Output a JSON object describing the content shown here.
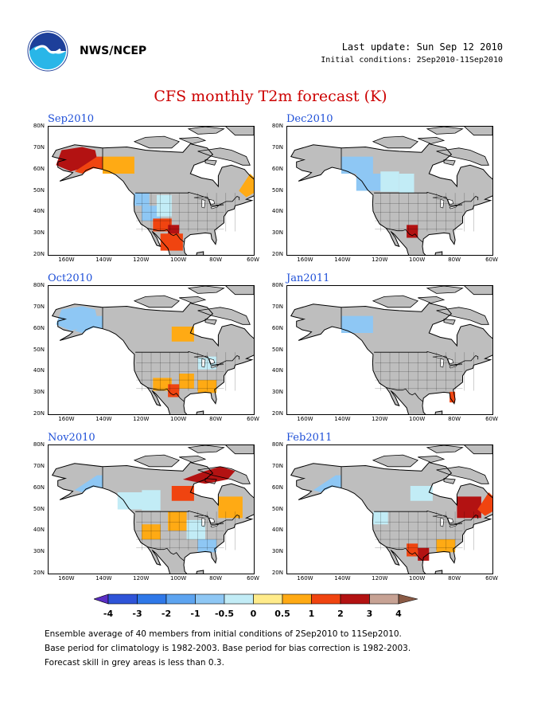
{
  "header": {
    "agency": "NWS/NCEP",
    "last_update": "Last update: Sun Sep 12 2010",
    "initial_conditions": "Initial conditions: 2Sep2010-11Sep2010"
  },
  "title": "CFS monthly T2m forecast (K)",
  "panels": [
    {
      "title": "Sep2010",
      "anomalies": [
        {
          "region": "alaska-west",
          "value": 2
        },
        {
          "region": "alaska-central",
          "value": 1
        },
        {
          "region": "yukon",
          "value": 0.5
        },
        {
          "region": "labrador",
          "value": 0.5
        },
        {
          "region": "pacific-northwest",
          "value": -1
        },
        {
          "region": "great-basin",
          "value": -1
        },
        {
          "region": "rockies",
          "value": -0.5
        },
        {
          "region": "southwest",
          "value": 1
        },
        {
          "region": "texas-west",
          "value": 2
        },
        {
          "region": "mexico-north",
          "value": 1
        }
      ]
    },
    {
      "title": "Dec2010",
      "anomalies": [
        {
          "region": "yukon",
          "value": -1
        },
        {
          "region": "british-columbia",
          "value": -1
        },
        {
          "region": "alberta",
          "value": -0.5
        },
        {
          "region": "saskatchewan",
          "value": -0.5
        },
        {
          "region": "texas-west",
          "value": 2
        }
      ]
    },
    {
      "title": "Oct2010",
      "anomalies": [
        {
          "region": "alaska-west",
          "value": -1
        },
        {
          "region": "alaska-central",
          "value": -1
        },
        {
          "region": "hudson-bay-west",
          "value": 0.5
        },
        {
          "region": "great-lakes",
          "value": -0.5
        },
        {
          "region": "southwest",
          "value": 0.5
        },
        {
          "region": "texas-west",
          "value": 1
        },
        {
          "region": "plains-south",
          "value": 0.5
        },
        {
          "region": "southeast",
          "value": 0.5
        }
      ]
    },
    {
      "title": "Jan2011",
      "anomalies": [
        {
          "region": "yukon",
          "value": -1
        },
        {
          "region": "florida",
          "value": 1
        }
      ]
    },
    {
      "title": "Nov2010",
      "anomalies": [
        {
          "region": "alaska-central",
          "value": -1
        },
        {
          "region": "nunavut",
          "value": 2
        },
        {
          "region": "hudson-bay-west",
          "value": 1
        },
        {
          "region": "quebec",
          "value": 0.5
        },
        {
          "region": "british-columbia",
          "value": -0.5
        },
        {
          "region": "alberta",
          "value": -0.5
        },
        {
          "region": "plains-north",
          "value": 0.5
        },
        {
          "region": "midwest",
          "value": -0.5
        },
        {
          "region": "southeast",
          "value": -1
        },
        {
          "region": "great-basin",
          "value": 0.5
        }
      ]
    },
    {
      "title": "Feb2011",
      "anomalies": [
        {
          "region": "alaska-central",
          "value": -1
        },
        {
          "region": "hudson-bay-west",
          "value": -0.5
        },
        {
          "region": "quebec",
          "value": 2
        },
        {
          "region": "labrador",
          "value": 1
        },
        {
          "region": "pacific-northwest",
          "value": -0.5
        },
        {
          "region": "texas-west",
          "value": 1
        },
        {
          "region": "texas-east",
          "value": 2
        },
        {
          "region": "southeast",
          "value": 0.5
        }
      ]
    }
  ],
  "axes": {
    "lat_labels": [
      "80N",
      "70N",
      "60N",
      "50N",
      "40N",
      "30N",
      "20N"
    ],
    "lon_labels": [
      "160W",
      "140W",
      "120W",
      "100W",
      "80W",
      "60W"
    ]
  },
  "colorbar": {
    "labels": [
      "-4",
      "-3",
      "-2",
      "-1",
      "-0.5",
      "0",
      "0.5",
      "1",
      "2",
      "3",
      "4"
    ],
    "colors": [
      "#5a2ec4",
      "#2f54d8",
      "#2f78e8",
      "#5da4f0",
      "#8ec7f4",
      "#c2ecf6",
      "#ffeb8a",
      "#ffaa14",
      "#f04410",
      "#b31212",
      "#c7a294",
      "#8a5a45"
    ]
  },
  "grey_color": "#bebebe",
  "footnotes": [
    "Ensemble average of 40 members from initial conditions of 2Sep2010 to 11Sep2010.",
    "Base period for climatology is 1982-2003. Base period for bias correction is 1982-2003.",
    "Forecast skill in grey areas is less than 0.3."
  ]
}
